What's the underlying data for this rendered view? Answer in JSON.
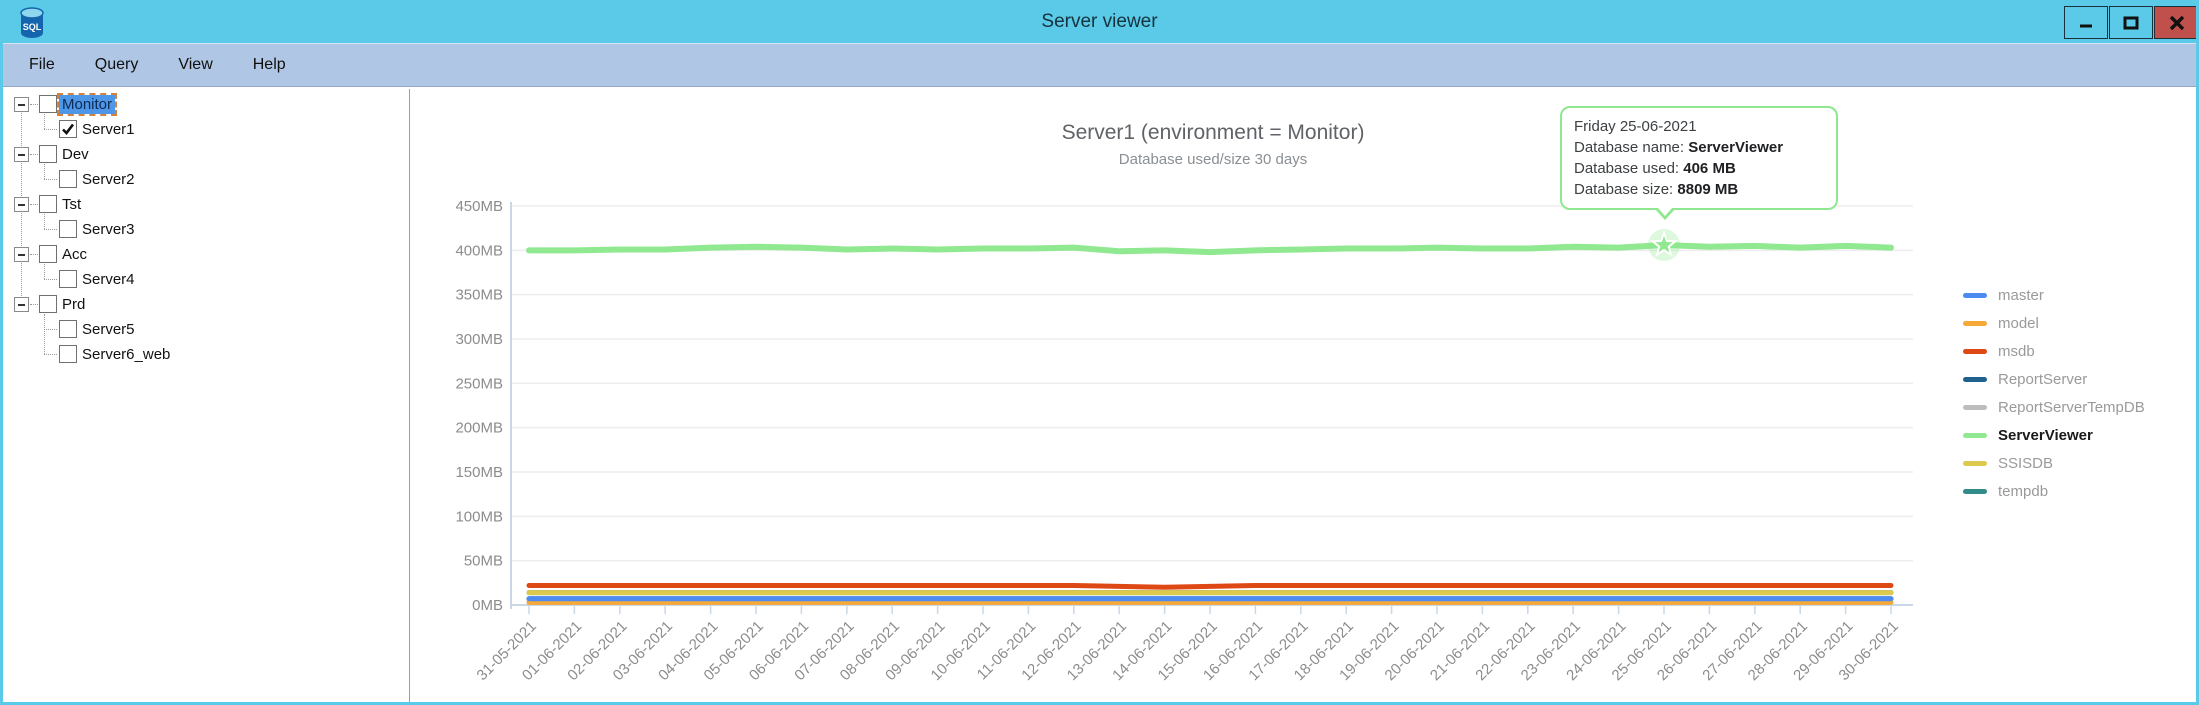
{
  "window": {
    "title": "Server viewer",
    "app_icon": "sql-database-icon",
    "controls": {
      "minimize": "minimize",
      "maximize": "maximize",
      "close": "close"
    }
  },
  "menu": {
    "items": [
      "File",
      "Query",
      "View",
      "Help"
    ]
  },
  "tree": {
    "groups": [
      {
        "label": "Monitor",
        "checked": false,
        "selected": true,
        "expanded": true,
        "children": [
          {
            "label": "Server1",
            "checked": true
          }
        ]
      },
      {
        "label": "Dev",
        "checked": false,
        "expanded": true,
        "children": [
          {
            "label": "Server2",
            "checked": false
          }
        ]
      },
      {
        "label": "Tst",
        "checked": false,
        "expanded": true,
        "children": [
          {
            "label": "Server3",
            "checked": false
          }
        ]
      },
      {
        "label": "Acc",
        "checked": false,
        "expanded": true,
        "children": [
          {
            "label": "Server4",
            "checked": false
          }
        ]
      },
      {
        "label": "Prd",
        "checked": false,
        "expanded": true,
        "children": [
          {
            "label": "Server5",
            "checked": false
          },
          {
            "label": "Server6_web",
            "checked": false
          }
        ]
      }
    ]
  },
  "chart_data": {
    "type": "line",
    "title": "Server1 (environment = Monitor)",
    "subtitle": "Database used/size 30 days",
    "ylim": [
      0,
      450
    ],
    "y_tick_step": 50,
    "y_unit": "MB",
    "grid": true,
    "legend_position": "right",
    "x": [
      "31-05-2021",
      "01-06-2021",
      "02-06-2021",
      "03-06-2021",
      "04-06-2021",
      "05-06-2021",
      "06-06-2021",
      "07-06-2021",
      "08-06-2021",
      "09-06-2021",
      "10-06-2021",
      "11-06-2021",
      "12-06-2021",
      "13-06-2021",
      "14-06-2021",
      "15-06-2021",
      "16-06-2021",
      "17-06-2021",
      "18-06-2021",
      "19-06-2021",
      "20-06-2021",
      "21-06-2021",
      "22-06-2021",
      "23-06-2021",
      "24-06-2021",
      "25-06-2021",
      "26-06-2021",
      "27-06-2021",
      "28-06-2021",
      "29-06-2021",
      "30-06-2021"
    ],
    "series": [
      {
        "name": "master",
        "color": "#4D8BF0",
        "value": 7
      },
      {
        "name": "model",
        "color": "#F7A937",
        "value": 3
      },
      {
        "name": "msdb",
        "color": "#DD4814",
        "values": [
          22,
          22,
          22,
          22,
          22,
          22,
          22,
          22,
          22,
          22,
          22,
          22,
          22,
          21,
          20,
          21,
          22,
          22,
          22,
          22,
          22,
          22,
          22,
          22,
          22,
          22,
          22,
          22,
          22,
          22,
          22
        ]
      },
      {
        "name": "ReportServer",
        "color": "#20618E",
        "value": 7
      },
      {
        "name": "ReportServerTempDB",
        "color": "#BDBDBD",
        "value": 3
      },
      {
        "name": "ServerViewer",
        "color": "#90E890",
        "highlighted": true,
        "values": [
          400,
          400,
          401,
          401,
          403,
          404,
          403,
          401,
          402,
          401,
          402,
          402,
          403,
          399,
          400,
          398,
          400,
          401,
          402,
          402,
          403,
          402,
          402,
          404,
          403,
          406,
          404,
          405,
          403,
          405,
          403
        ]
      },
      {
        "name": "SSISDB",
        "color": "#DEC94F",
        "value": 14
      },
      {
        "name": "tempdb",
        "color": "#338A8A",
        "value": 14
      }
    ],
    "draw_order": [
      "ReportServer",
      "ReportServerTempDB",
      "tempdb",
      "model",
      "master",
      "SSISDB",
      "msdb",
      "ServerViewer"
    ],
    "marker": {
      "series": "ServerViewer",
      "index": 25,
      "date": "25-06-2021",
      "shape": "star"
    }
  },
  "tooltip": {
    "date": "Friday 25-06-2021",
    "rows": [
      {
        "label": "Database name: ",
        "value": "ServerViewer"
      },
      {
        "label": "Database used: ",
        "value": "406 MB"
      },
      {
        "label": "Database size: ",
        "value": "8809 MB"
      }
    ]
  },
  "colors": {
    "titlebar": "#5BC9E8",
    "menubar": "#AFC7E5",
    "close_button": "#C0504B",
    "tooltip_border": "#8FE78F",
    "tree_selection": "#4D96E8"
  }
}
